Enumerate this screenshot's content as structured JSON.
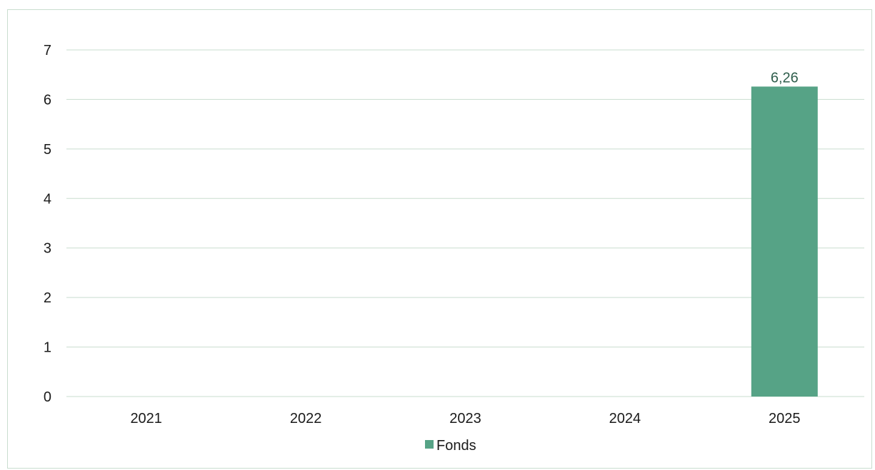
{
  "chart_data": {
    "type": "bar",
    "categories": [
      "2021",
      "2022",
      "2023",
      "2024",
      "2025"
    ],
    "series": [
      {
        "name": "Fonds",
        "values": [
          null,
          null,
          null,
          null,
          6.26
        ],
        "data_labels": [
          "",
          "",
          "",
          "",
          "6,26"
        ]
      }
    ],
    "title": "",
    "xlabel": "",
    "ylabel": "",
    "ylim": [
      0,
      7
    ],
    "yticks": [
      "0",
      "1",
      "2",
      "3",
      "4",
      "5",
      "6",
      "7"
    ],
    "grid": "horizontal",
    "legend_position": "bottom"
  },
  "colors": {
    "bar": "#56a386",
    "gridline": "#c9ddcf",
    "data_label": "#2f5e4c"
  }
}
